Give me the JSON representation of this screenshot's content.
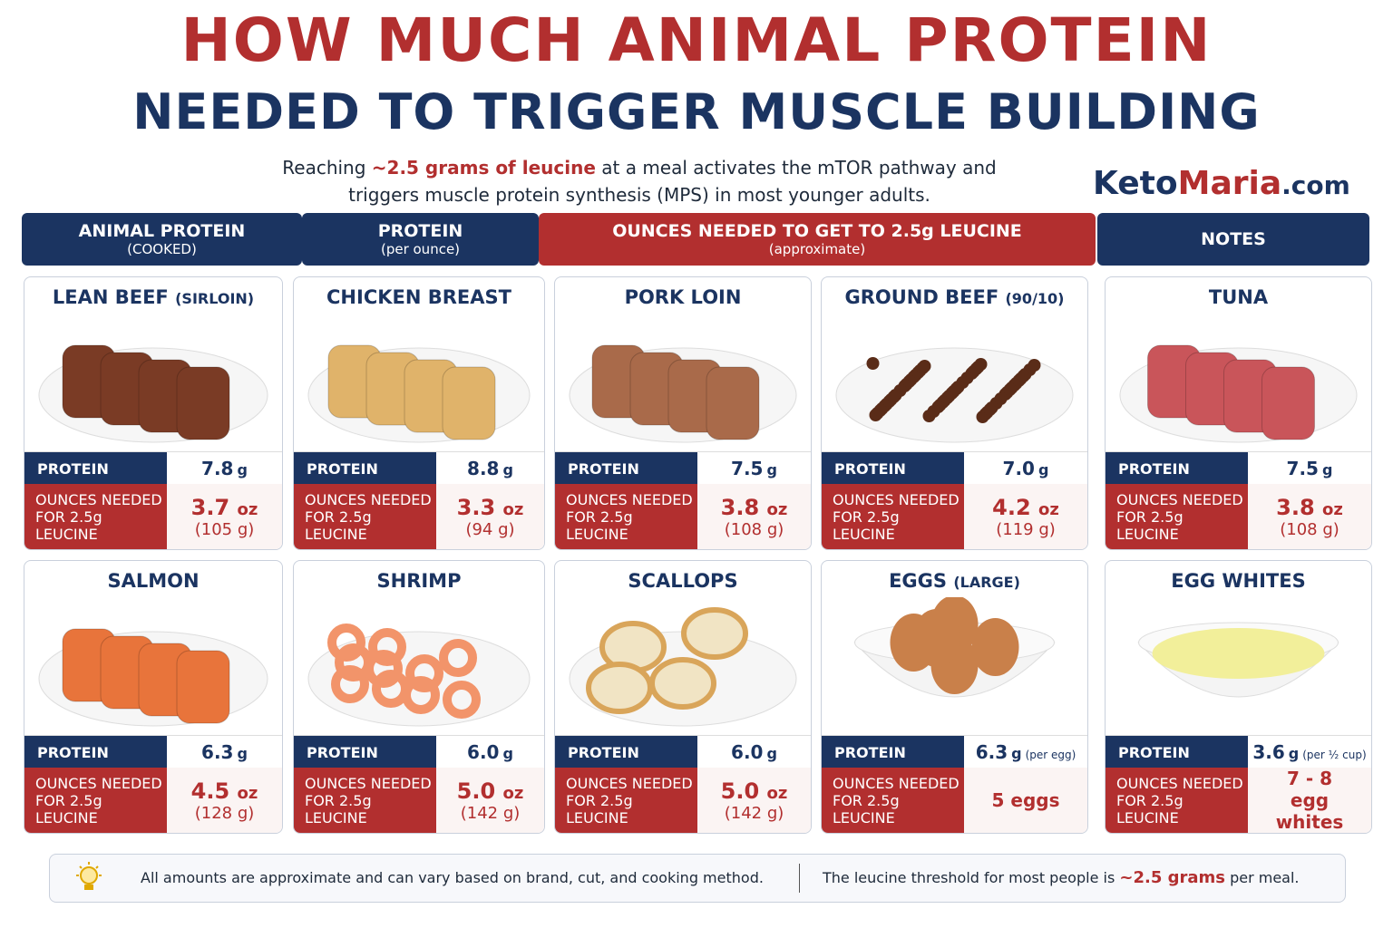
{
  "header": {
    "title_line1": "HOW MUCH ANIMAL PROTEIN",
    "title_line2": "NEEDED TO TRIGGER MUSCLE BUILDING",
    "intro": {
      "before": "Reaching ",
      "highlight": "~2.5 grams of leucine",
      "after": " at a meal activates the mTOR pathway and",
      "line2": "triggers muscle protein synthesis (MPS) in most younger adults."
    },
    "brand": {
      "part1": "Keto",
      "part2": "Maria",
      "part3": ".com"
    }
  },
  "columns": [
    {
      "title": "ANIMAL PROTEIN",
      "sub": "(COOKED)"
    },
    {
      "title": "PROTEIN",
      "sub": "(per ounce)"
    },
    {
      "title": "OUNCES NEEDED TO GET TO 2.5g LEUCINE",
      "sub": "(approximate)"
    },
    {
      "title": "NOTES"
    }
  ],
  "labels": {
    "protein": "PROTEIN",
    "needed_line1": "OUNCES NEEDED",
    "needed_line2": "FOR 2.5g LEUCINE"
  },
  "cards": [
    {
      "name": "LEAN BEEF",
      "qualifier": "(SIRLOIN)",
      "protein": "7.8",
      "protein_unit": "g",
      "amount": "3.7",
      "amount_unit": "oz",
      "grams": "(105 g)"
    },
    {
      "name": "CHICKEN BREAST",
      "protein": "8.8",
      "protein_unit": "g",
      "amount": "3.3",
      "amount_unit": "oz",
      "grams": "(94 g)"
    },
    {
      "name": "PORK LOIN",
      "protein": "7.5",
      "protein_unit": "g",
      "amount": "3.8",
      "amount_unit": "oz",
      "grams": "(108 g)"
    },
    {
      "name": "GROUND BEEF",
      "qualifier": "(90/10)",
      "protein": "7.0",
      "protein_unit": "g",
      "amount": "4.2",
      "amount_unit": "oz",
      "grams": "(119 g)"
    },
    {
      "name": "TUNA",
      "protein": "7.5",
      "protein_unit": "g",
      "amount": "3.8",
      "amount_unit": "oz",
      "grams": "(108 g)"
    },
    {
      "name": "SALMON",
      "protein": "6.3",
      "protein_unit": "g",
      "amount": "4.5",
      "amount_unit": "oz",
      "grams": "(128 g)"
    },
    {
      "name": "SHRIMP",
      "protein": "6.0",
      "protein_unit": "g",
      "amount": "5.0",
      "amount_unit": "oz",
      "grams": "(142 g)"
    },
    {
      "name": "SCALLOPS",
      "protein": "6.0",
      "protein_unit": "g",
      "amount": "5.0",
      "amount_unit": "oz",
      "grams": "(142 g)"
    },
    {
      "name": "EGGS",
      "qualifier": "(LARGE)",
      "protein": "6.3",
      "protein_unit": "g",
      "protein_note": "(per egg)",
      "amount": "5 eggs"
    },
    {
      "name": "EGG WHITES",
      "protein": "3.6",
      "protein_unit": "g",
      "protein_note": "(per ½ cup)",
      "amount": "7 - 8 egg whites"
    }
  ],
  "footer": {
    "note": "All amounts are approximate and can vary based on brand, cut, and cooking method.",
    "threshold_before": "The leucine threshold for most people is ",
    "threshold_highlight": "~2.5 grams",
    "threshold_after": " per meal."
  }
}
